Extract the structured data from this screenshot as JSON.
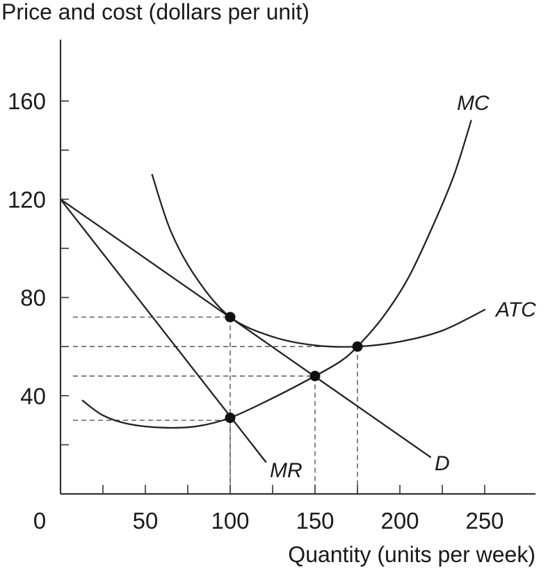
{
  "chart_data": {
    "type": "line",
    "ylabel": "Price and cost (dollars per unit)",
    "xlabel": "Quantity (units per week)",
    "xlim": [
      0,
      280
    ],
    "ylim": [
      0,
      185
    ],
    "x_ticks": [
      0,
      50,
      100,
      150,
      200,
      250
    ],
    "x_tick_labels": [
      "0",
      "50",
      "100",
      "150",
      "200",
      "250"
    ],
    "y_ticks": [
      40,
      80,
      120,
      160
    ],
    "y_tick_labels": [
      "40",
      "80",
      "120",
      "160"
    ],
    "y_minor_ticks": [
      20,
      60,
      100,
      140
    ],
    "x_minor_ticks": [
      25,
      75,
      125,
      175,
      225
    ],
    "grid": false,
    "series": [
      {
        "name": "D",
        "x": [
          0,
          218
        ],
        "y": [
          120,
          15
        ]
      },
      {
        "name": "MR",
        "x": [
          0,
          121
        ],
        "y": [
          120,
          13
        ]
      },
      {
        "name": "MC",
        "x": [
          13,
          25,
          40,
          60,
          80,
          100,
          125,
          150,
          165,
          175,
          190,
          205,
          220,
          232,
          242
        ],
        "y": [
          38,
          32,
          28.5,
          27,
          27.5,
          31,
          39,
          48,
          54,
          60,
          72,
          88,
          110,
          130,
          152
        ]
      },
      {
        "name": "ATC",
        "x": [
          54,
          65,
          80,
          100,
          125,
          150,
          175,
          200,
          225,
          250
        ],
        "y": [
          130,
          107,
          88,
          72,
          64,
          60.5,
          60,
          62,
          66.5,
          75
        ]
      }
    ],
    "points": [
      {
        "x": 100,
        "y": 72
      },
      {
        "x": 100,
        "y": 31
      },
      {
        "x": 150,
        "y": 48
      },
      {
        "x": 175,
        "y": 60
      }
    ],
    "guides": [
      {
        "x": 100,
        "y": 72
      },
      {
        "x": 100,
        "y": 30
      },
      {
        "x": 150,
        "y": 48
      },
      {
        "x": 175,
        "y": 60
      }
    ]
  }
}
